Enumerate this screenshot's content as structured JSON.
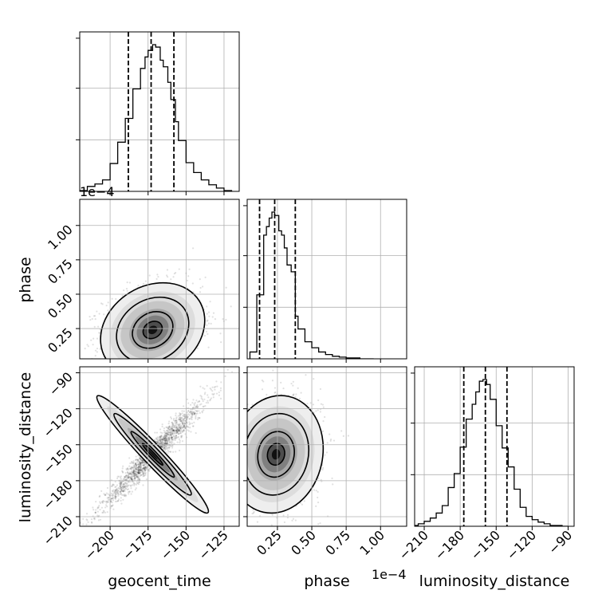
{
  "chart_data": {
    "type": "corner",
    "parameters": [
      "geocent_time",
      "phase",
      "luminosity_distance"
    ],
    "axis_labels": {
      "x": [
        "geocent_time",
        "phase",
        "luminosity_distance"
      ],
      "y_row1": "phase",
      "y_row2": "luminosity_distance"
    },
    "phase_offset_label": "1e−4",
    "ranges": {
      "geocent_time": [
        -220,
        -115
      ],
      "phase": [
        0.03,
        1.19
      ],
      "luminosity_distance": [
        -218,
        -85
      ]
    },
    "ticks": {
      "geocent_time": [
        -200,
        -175,
        -150,
        -125
      ],
      "phase": [
        0.25,
        0.5,
        0.75,
        1.0
      ],
      "luminosity_distance": [
        -210,
        -180,
        -150,
        -120,
        -90
      ]
    },
    "tick_labels": {
      "geocent_time": [
        "−200",
        "−175",
        "−150",
        "−125"
      ],
      "phase": [
        "0.25",
        "0.50",
        "0.75",
        "1.00"
      ],
      "luminosity_distance": [
        "−210",
        "−180",
        "−150",
        "−120",
        "−90"
      ]
    },
    "histograms": {
      "geocent_time": {
        "edges": [
          -220,
          -215,
          -210,
          -205,
          -200,
          -195,
          -190,
          -185,
          -180,
          -177,
          -175,
          -172,
          -170,
          -167,
          -165,
          -162,
          -160,
          -157,
          -155,
          -150,
          -145,
          -140,
          -135,
          -130,
          -125,
          -120
        ],
        "counts": [
          1,
          6,
          9,
          14,
          34,
          60,
          89,
          125,
          150,
          164,
          172,
          179,
          176,
          160,
          152,
          133,
          112,
          85,
          62,
          35,
          23,
          14,
          8,
          4,
          1
        ],
        "quantiles": [
          -188,
          -173,
          -158
        ]
      },
      "phase": {
        "edges": [
          0.05,
          0.1,
          0.15,
          0.17,
          0.19,
          0.21,
          0.23,
          0.26,
          0.28,
          0.3,
          0.32,
          0.35,
          0.38,
          0.4,
          0.45,
          0.5,
          0.55,
          0.6,
          0.65,
          0.7,
          0.75,
          0.8,
          0.85,
          0.9,
          0.95
        ],
        "counts": [
          8,
          75,
          145,
          155,
          165,
          172,
          168,
          150,
          145,
          130,
          110,
          102,
          50,
          35,
          20,
          13,
          8,
          5,
          3,
          2,
          1,
          1,
          0,
          0
        ],
        "quantiles": [
          0.12,
          0.23,
          0.38
        ]
      },
      "luminosity_distance": {
        "edges": [
          -220,
          -215,
          -210,
          -205,
          -200,
          -195,
          -190,
          -185,
          -180,
          -175,
          -170,
          -167,
          -164,
          -161,
          -158,
          -155,
          -150,
          -145,
          -140,
          -135,
          -130,
          -125,
          -120,
          -115,
          -110,
          -105,
          -100,
          -95,
          -90
        ],
        "counts": [
          1,
          3,
          6,
          10,
          16,
          25,
          47,
          64,
          96,
          130,
          148,
          163,
          176,
          178,
          172,
          154,
          122,
          95,
          72,
          45,
          23,
          12,
          8,
          5,
          3,
          1,
          1,
          0
        ],
        "quantiles": [
          -177,
          -159,
          -141
        ]
      }
    },
    "pairs": [
      {
        "x": "geocent_time",
        "y": "phase",
        "correlation": 0.2,
        "center": [
          -172,
          0.24
        ],
        "sd": [
          14,
          0.14
        ]
      },
      {
        "x": "geocent_time",
        "y": "luminosity_distance",
        "correlation": 0.97,
        "center": [
          -172,
          -158
        ],
        "sd": [
          15,
          20
        ]
      },
      {
        "x": "phase",
        "y": "luminosity_distance",
        "correlation": 0.1,
        "center": [
          0.24,
          -158
        ],
        "sd": [
          0.14,
          20
        ]
      }
    ],
    "grid": true
  }
}
